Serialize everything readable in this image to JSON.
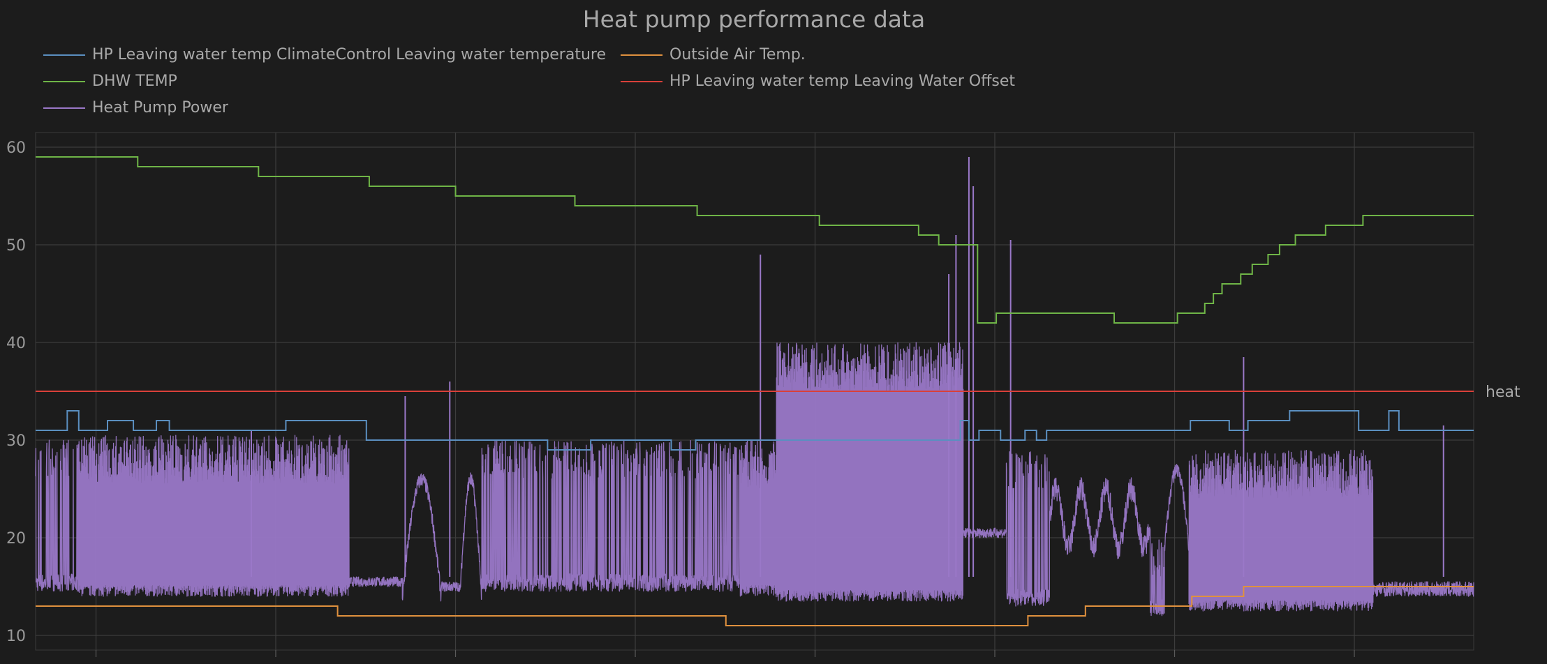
{
  "chart_data": {
    "type": "line",
    "title": "Heat pump performance data",
    "xlabel": "",
    "ylabel": "",
    "x_range": [
      0,
      100
    ],
    "ylim": [
      8.5,
      61.5
    ],
    "y_ticks": [
      10,
      20,
      30,
      40,
      50,
      60
    ],
    "x_gridlines": [
      4.2,
      16.7,
      29.2,
      41.7,
      54.2,
      66.7,
      79.2,
      91.7
    ],
    "grid": true,
    "legend_placement": "top-left, above plot",
    "series": [
      {
        "name": "HP Leaving water temp ClimateControl Leaving water temperature",
        "color": "#5b8fc0",
        "kind": "step",
        "x": [
          0,
          2.2,
          3.0,
          5.0,
          6.8,
          8.4,
          9.3,
          11.0,
          14.5,
          17.4,
          23.0,
          29.2,
          35.6,
          37.1,
          38.6,
          41.7,
          44.2,
          45.9,
          64.3,
          64.9,
          65.6,
          67.1,
          68.8,
          69.6,
          70.3,
          80.3,
          83.0,
          84.3,
          87.2,
          92.0,
          94.1,
          94.8,
          100
        ],
        "y": [
          31,
          33,
          31,
          32,
          31,
          32,
          31,
          31,
          31,
          32,
          30,
          30,
          29,
          29,
          30,
          30,
          29,
          30,
          32,
          30,
          31,
          30,
          31,
          30,
          31,
          32,
          31,
          32,
          33,
          31,
          33,
          31,
          31
        ]
      },
      {
        "name": "Outside Air Temp.",
        "color": "#e0913e",
        "kind": "step",
        "x": [
          0,
          4.5,
          21.0,
          36.0,
          48.0,
          69.0,
          73.0,
          77.2,
          80.4,
          84.0,
          100
        ],
        "y": [
          13,
          13,
          12,
          12,
          11,
          12,
          13,
          13,
          14,
          15,
          15
        ]
      },
      {
        "name": "DHW TEMP",
        "color": "#6fb547",
        "kind": "step",
        "x": [
          0,
          7.1,
          15.5,
          23.2,
          29.2,
          37.5,
          46.0,
          54.5,
          61.4,
          62.8,
          65.2,
          65.5,
          66.8,
          69.1,
          75.0,
          79.4,
          81.3,
          81.9,
          82.5,
          83.8,
          84.6,
          85.7,
          86.5,
          87.6,
          89.7,
          92.3,
          100
        ],
        "y": [
          59,
          58,
          57,
          56,
          55,
          54,
          53,
          52,
          51,
          50,
          50,
          42,
          43,
          43,
          42,
          43,
          44,
          45,
          46,
          47,
          48,
          49,
          50,
          51,
          52,
          53,
          53
        ]
      },
      {
        "name": "HP Leaving water temp Leaving Water Offset",
        "color": "#d9403a",
        "kind": "line",
        "x": [
          0,
          100
        ],
        "y": [
          35,
          35
        ]
      },
      {
        "name": "Heat Pump Power",
        "color": "#9a78c8",
        "kind": "line",
        "segments": [
          {
            "x0": 0,
            "x1": 3,
            "base": 14.5,
            "peak": 30,
            "mode": "osc"
          },
          {
            "x0": 3,
            "x1": 21.8,
            "base": 14,
            "peak": 30.5,
            "mode": "dense"
          },
          {
            "x0": 21.8,
            "x1": 25.5,
            "base": 15,
            "peak": 16,
            "mode": "flat"
          },
          {
            "x0": 25.5,
            "x1": 28.2,
            "base": 14,
            "peak": 26,
            "mode": "bump"
          },
          {
            "x0": 28.2,
            "x1": 29.5,
            "base": 14.5,
            "peak": 15.5,
            "mode": "flat"
          },
          {
            "x0": 29.5,
            "x1": 31,
            "base": 14,
            "peak": 26,
            "mode": "bump"
          },
          {
            "x0": 31,
            "x1": 49,
            "base": 14.5,
            "peak": 30,
            "mode": "osc"
          },
          {
            "x0": 49,
            "x1": 51.5,
            "base": 14,
            "peak": 30,
            "mode": "dense"
          },
          {
            "x0": 51.5,
            "x1": 64.5,
            "base": 13.5,
            "peak": 40,
            "mode": "dense"
          },
          {
            "x0": 64.5,
            "x1": 67.5,
            "base": 20,
            "peak": 21,
            "mode": "flat"
          },
          {
            "x0": 67.5,
            "x1": 70.5,
            "base": 13,
            "peak": 29,
            "mode": "osc"
          },
          {
            "x0": 70.5,
            "x1": 77.5,
            "base": 19,
            "peak": 25,
            "mode": "wave"
          },
          {
            "x0": 77.5,
            "x1": 78.5,
            "base": 12,
            "peak": 20,
            "mode": "osc"
          },
          {
            "x0": 78.5,
            "x1": 80.2,
            "base": 19,
            "peak": 27,
            "mode": "bump"
          },
          {
            "x0": 80.2,
            "x1": 93,
            "base": 12.5,
            "peak": 29,
            "mode": "dense"
          },
          {
            "x0": 93,
            "x1": 100,
            "base": 14,
            "peak": 15.5,
            "mode": "flat"
          }
        ],
        "spikes": [
          {
            "x": 15.0,
            "y": 31
          },
          {
            "x": 25.7,
            "y": 34.5
          },
          {
            "x": 28.8,
            "y": 36
          },
          {
            "x": 50.4,
            "y": 49
          },
          {
            "x": 63.5,
            "y": 47
          },
          {
            "x": 64.0,
            "y": 51
          },
          {
            "x": 64.9,
            "y": 59
          },
          {
            "x": 65.2,
            "y": 56
          },
          {
            "x": 67.8,
            "y": 50.5
          },
          {
            "x": 84.0,
            "y": 38.5
          },
          {
            "x": 97.9,
            "y": 31.5
          }
        ]
      }
    ],
    "annotations": [
      {
        "text": "heat",
        "x": 100,
        "y": 35
      }
    ]
  }
}
